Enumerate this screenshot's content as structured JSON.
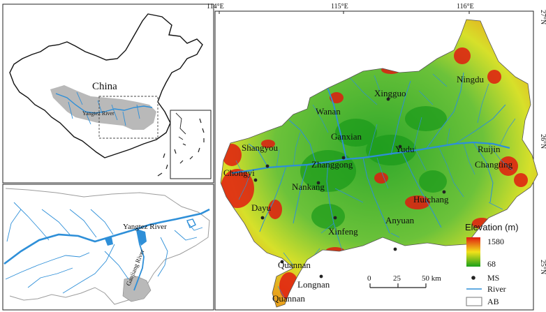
{
  "colors": {
    "river": "#2e8fd8",
    "elev_high": "#e01c10",
    "elev_mid": "#f2e21a",
    "elev_low": "#1aa01a",
    "basin_fill": "#b9b9b9",
    "frame": "#222222"
  },
  "grid_labels": {
    "top": [
      "114°E",
      "115°E",
      "116°E"
    ],
    "right": [
      "27°N",
      "26°N",
      "25°N"
    ]
  },
  "inset_china": {
    "country_label": "China",
    "river_label": "Yangtez River"
  },
  "inset_yangtze": {
    "yangtze_label": "Yangtez River",
    "ganjiang_label": "Ganjiang River"
  },
  "cities": [
    {
      "name": "Xingguo"
    },
    {
      "name": "Ningdu"
    },
    {
      "name": "Wanan"
    },
    {
      "name": "Ganxian"
    },
    {
      "name": "Shangyou"
    },
    {
      "name": "Yudu"
    },
    {
      "name": "Ruijin"
    },
    {
      "name": "Zhanggong"
    },
    {
      "name": "Chongyi"
    },
    {
      "name": "Changting"
    },
    {
      "name": "Nankang"
    },
    {
      "name": "Huichang"
    },
    {
      "name": "Dayu"
    },
    {
      "name": "Anyuan"
    },
    {
      "name": "Xinfeng"
    },
    {
      "name": "Quannan"
    },
    {
      "name": "Longnan"
    },
    {
      "name": "Quannan"
    }
  ],
  "legend": {
    "title": "Elevation (m)",
    "max": "1580",
    "min": "68",
    "items": [
      {
        "label": "MS",
        "symbol": "dot"
      },
      {
        "label": "River",
        "symbol": "line"
      },
      {
        "label": "AB",
        "symbol": "box"
      }
    ]
  },
  "scalebar": {
    "ticks": [
      "0",
      "25",
      "50 km"
    ]
  }
}
